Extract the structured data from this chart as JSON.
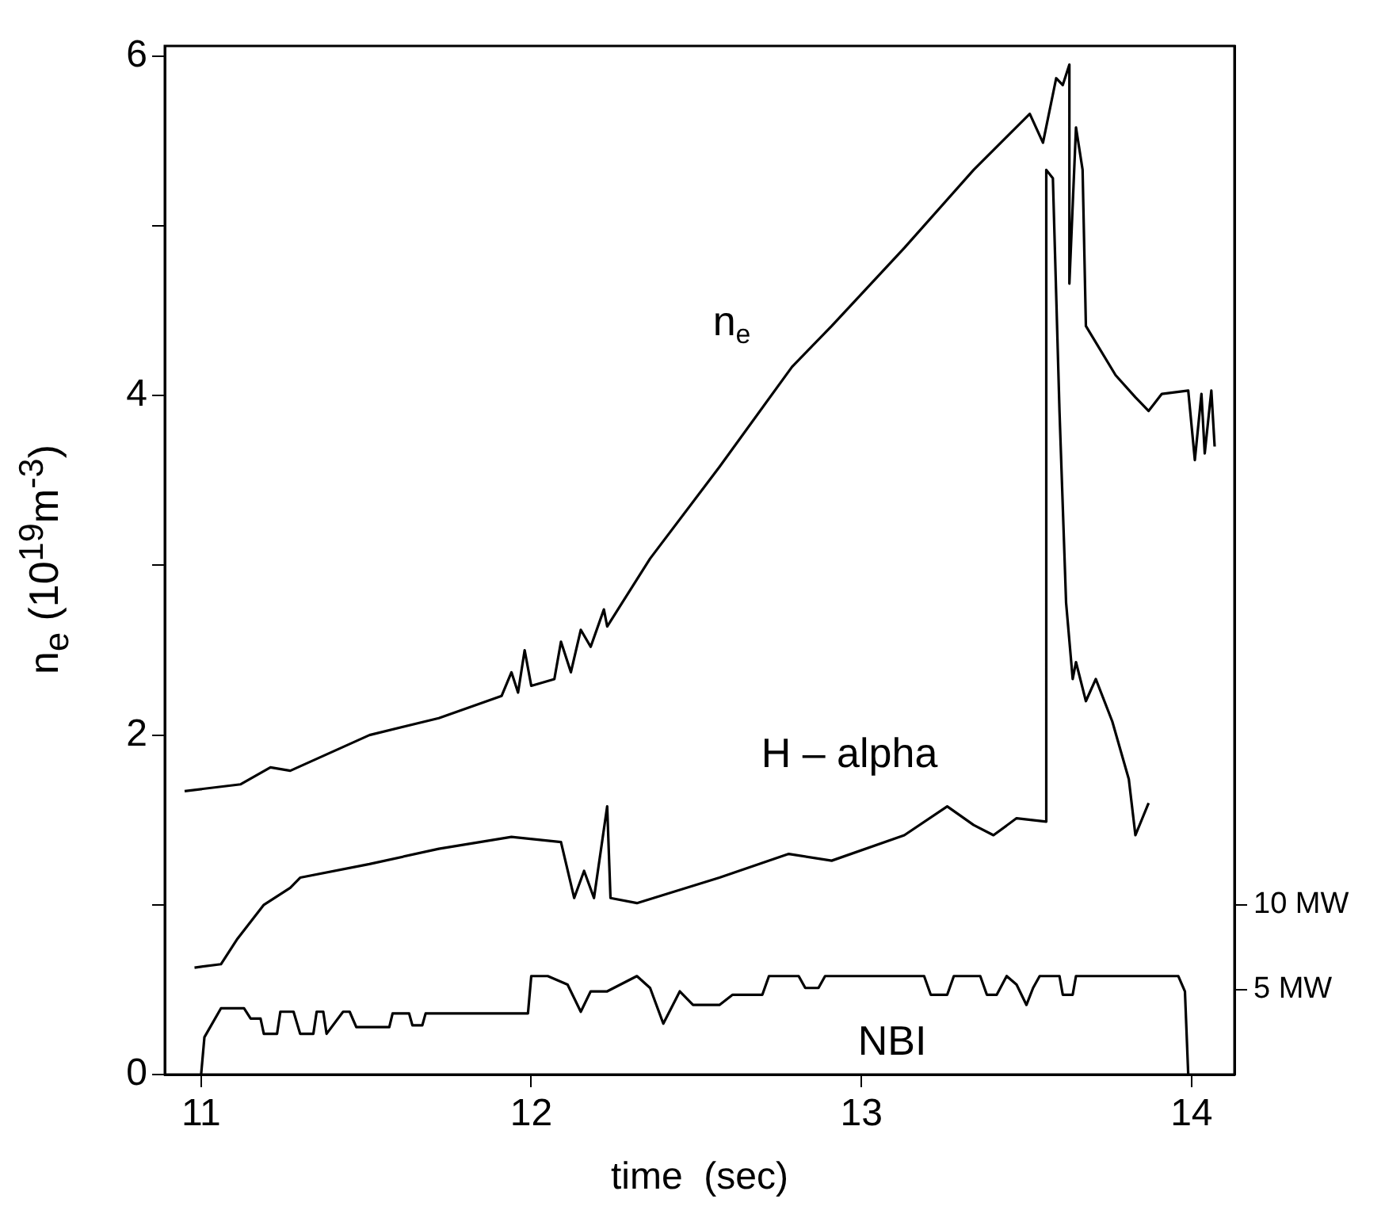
{
  "chart_data": {
    "type": "line",
    "xlabel": "time  (sec)",
    "ylabel": "n$_{e}$  (10$^{19}$m$^{-3}$)",
    "xlim": [
      10.89,
      14.13
    ],
    "xticks": [
      11,
      12,
      13,
      14
    ],
    "ylim": [
      0,
      6.06
    ],
    "yticks": [
      0,
      {
        "value": 1,
        "label": null
      },
      2,
      {
        "value": 3,
        "label": null
      },
      4,
      {
        "value": 5,
        "label": null
      },
      6
    ],
    "y2lim": [
      0,
      60.6
    ],
    "y2ticks": [
      {
        "value": 5,
        "label": "5 MW"
      },
      {
        "value": 10,
        "label": "10 MW"
      }
    ],
    "grid": false,
    "legend": false,
    "marker": "none",
    "line_style": "solid",
    "series": [
      {
        "name": "n$_{e}$",
        "color": "#000000",
        "x": [
          10.95,
          11.12,
          11.21,
          11.27,
          11.51,
          11.72,
          11.91,
          11.94,
          11.96,
          11.98,
          12.0,
          12.07,
          12.09,
          12.12,
          12.15,
          12.18,
          12.22,
          12.23,
          12.36,
          12.57,
          12.79,
          12.91,
          13.13,
          13.34,
          13.51,
          13.55,
          13.59,
          13.61,
          13.63,
          13.63,
          13.65,
          13.67,
          13.68,
          13.77,
          13.83,
          13.87,
          13.91,
          13.99,
          14.01,
          14.03,
          14.04,
          14.06,
          14.07
        ],
        "values": [
          1.67,
          1.71,
          1.81,
          1.79,
          2.0,
          2.1,
          2.23,
          2.37,
          2.25,
          2.5,
          2.29,
          2.33,
          2.55,
          2.37,
          2.62,
          2.52,
          2.74,
          2.64,
          3.04,
          3.58,
          4.17,
          4.41,
          4.87,
          5.33,
          5.66,
          5.49,
          5.87,
          5.83,
          5.95,
          4.66,
          5.58,
          5.33,
          4.41,
          4.12,
          3.99,
          3.91,
          4.01,
          4.03,
          3.62,
          4.01,
          3.66,
          4.03,
          3.7
        ]
      },
      {
        "name": "H – alpha",
        "color": "#000000",
        "x": [
          10.98,
          11.06,
          11.11,
          11.19,
          11.27,
          11.3,
          11.51,
          11.72,
          11.94,
          12.09,
          12.13,
          12.16,
          12.19,
          12.23,
          12.24,
          12.32,
          12.57,
          12.78,
          12.91,
          13.13,
          13.26,
          13.34,
          13.4,
          13.47,
          13.56,
          13.56,
          13.58,
          13.6,
          13.62,
          13.64,
          13.65,
          13.68,
          13.71,
          13.76,
          13.81,
          13.83,
          13.87
        ],
        "values": [
          0.63,
          0.65,
          0.8,
          1.0,
          1.1,
          1.16,
          1.24,
          1.33,
          1.4,
          1.37,
          1.04,
          1.2,
          1.04,
          1.58,
          1.04,
          1.01,
          1.16,
          1.3,
          1.26,
          1.41,
          1.58,
          1.47,
          1.41,
          1.51,
          1.49,
          5.33,
          5.28,
          3.91,
          2.78,
          2.33,
          2.43,
          2.2,
          2.33,
          2.08,
          1.74,
          1.41,
          1.6
        ]
      },
      {
        "name": "NBI",
        "color": "#000000",
        "axis": "y2",
        "x": [
          11.0,
          11.01,
          11.06,
          11.13,
          11.15,
          11.18,
          11.19,
          11.23,
          11.24,
          11.28,
          11.3,
          11.34,
          11.35,
          11.37,
          11.38,
          11.43,
          11.45,
          11.47,
          11.57,
          11.58,
          11.63,
          11.64,
          11.67,
          11.68,
          11.99,
          12.0,
          12.05,
          12.11,
          12.15,
          12.18,
          12.23,
          12.32,
          12.36,
          12.4,
          12.45,
          12.49,
          12.57,
          12.61,
          12.7,
          12.72,
          12.81,
          12.83,
          12.87,
          12.89,
          13.19,
          13.21,
          13.26,
          13.28,
          13.36,
          13.38,
          13.41,
          13.44,
          13.47,
          13.5,
          13.52,
          13.54,
          13.6,
          13.61,
          13.64,
          13.65,
          13.96,
          13.98,
          13.99
        ],
        "values": [
          0,
          2.2,
          3.9,
          3.9,
          3.3,
          3.3,
          2.4,
          2.4,
          3.7,
          3.7,
          2.4,
          2.4,
          3.7,
          3.7,
          2.4,
          3.7,
          3.7,
          2.8,
          2.8,
          3.6,
          3.6,
          2.9,
          2.9,
          3.6,
          3.6,
          5.8,
          5.8,
          5.3,
          3.7,
          4.9,
          4.9,
          5.8,
          5.1,
          3.0,
          4.9,
          4.1,
          4.1,
          4.7,
          4.7,
          5.8,
          5.8,
          5.1,
          5.1,
          5.8,
          5.8,
          4.7,
          4.7,
          5.8,
          5.8,
          4.7,
          4.7,
          5.8,
          5.3,
          4.1,
          5.1,
          5.8,
          5.8,
          4.7,
          4.7,
          5.8,
          5.8,
          4.9,
          0
        ]
      }
    ]
  }
}
